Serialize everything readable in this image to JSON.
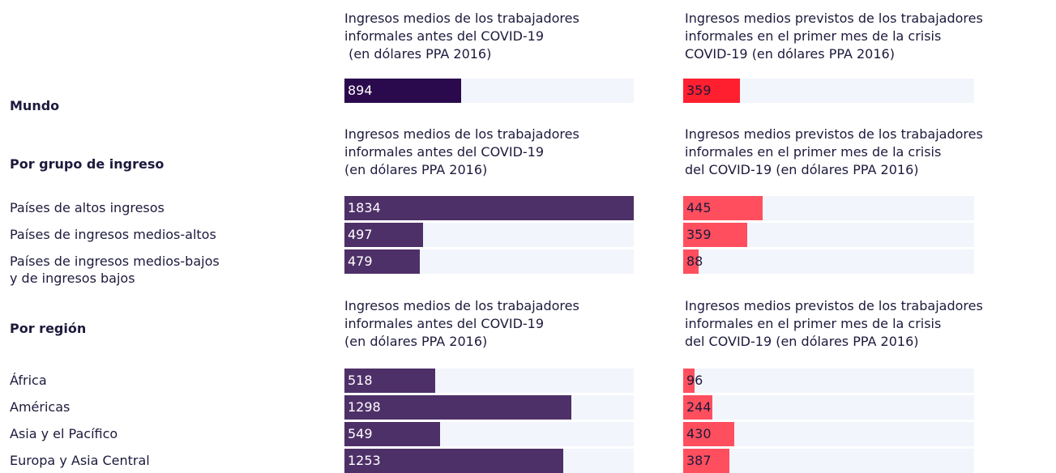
{
  "chart_data": [
    {
      "type": "bar",
      "categories": [
        "Mundo"
      ],
      "series": [
        {
          "name": "Ingresos medios de los trabajadores\ninformales antes del COVID-19\n (en dólares PPA 2016)",
          "color": "#2a0a4c",
          "xlim": [
            0,
            2217
          ],
          "values": [
            894
          ]
        },
        {
          "name": "Ingresos medios previstos de los trabajadores\ninformales en el primer mes de la crisis\nCOVID-19 (en dólares PPA 2016)",
          "color": "#ff1f2e",
          "xlim": [
            0,
            1840
          ],
          "values": [
            359
          ]
        }
      ]
    },
    {
      "type": "bar",
      "heading": "Por grupo de ingreso",
      "categories": [
        "Países de altos ingresos",
        "Países de ingresos medios-altos",
        "Países de ingresos medios-bajos\ny de ingresos bajos"
      ],
      "series": [
        {
          "name": "Ingresos medios de los trabajadores\ninformales antes del COVID-19\n(en dólares PPA 2016)",
          "color": "#4e3068",
          "xlim": [
            0,
            1834
          ],
          "values": [
            1834,
            497,
            479
          ]
        },
        {
          "name": "Ingresos medios previstos de los trabajadores\ninformales en el primer mes de la crisis\ndel COVID-19 (en dólares PPA 2016)",
          "color": "#ff4f5e",
          "xlim": [
            0,
            1630
          ],
          "values": [
            445,
            359,
            88
          ]
        }
      ]
    },
    {
      "type": "bar",
      "heading": "Por región",
      "categories": [
        "África",
        "Américas",
        "Asia y el Pacífico",
        "Europa y Asia Central"
      ],
      "series": [
        {
          "name": "Ingresos medios de los trabajadores\ninformales antes del COVID-19\n(en dólares PPA 2016)",
          "color": "#4e3068",
          "xlim": [
            0,
            1655
          ],
          "values": [
            518,
            1298,
            549,
            1253
          ]
        },
        {
          "name": "Ingresos medios previstos de los trabajadores\ninformales en el primer mes de la crisis\ndel COVID-19 (en dólares PPA 2016)",
          "color": "#ff4f5e",
          "xlim": [
            0,
            2450
          ],
          "values": [
            96,
            244,
            430,
            387
          ]
        }
      ]
    }
  ]
}
